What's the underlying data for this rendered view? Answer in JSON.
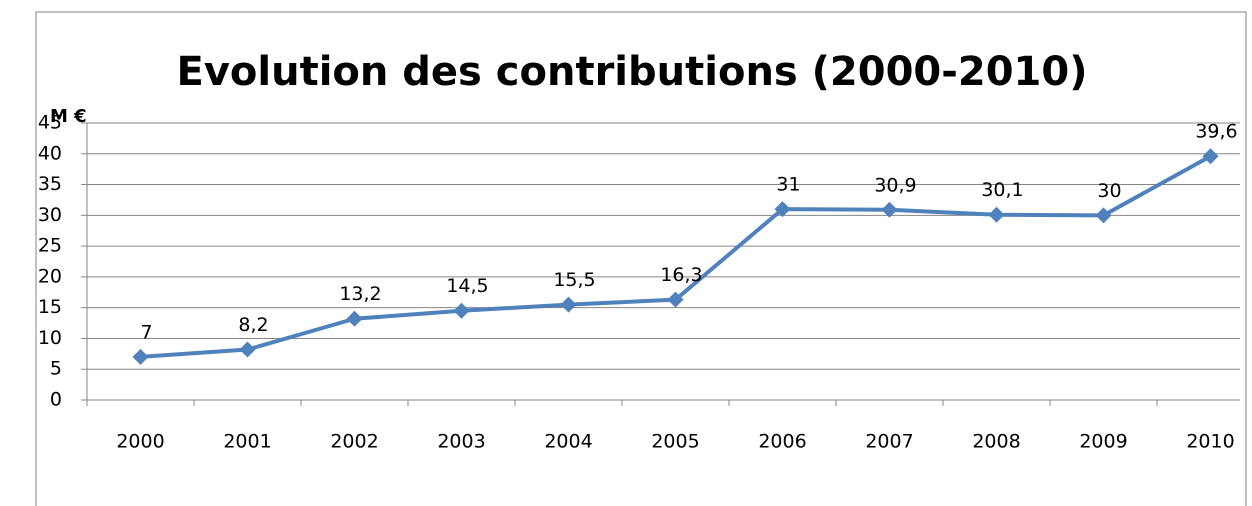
{
  "chart_data": {
    "type": "line",
    "title": "Evolution des contributions (2000-2010)",
    "ylabel": "M €",
    "categories": [
      "2000",
      "2001",
      "2002",
      "2003",
      "2004",
      "2005",
      "2006",
      "2007",
      "2008",
      "2009",
      "2010"
    ],
    "series": [
      {
        "name": "Contributions",
        "color": "#4f81bd",
        "values": [
          7,
          8.2,
          13.2,
          14.5,
          15.5,
          16.3,
          31,
          30.9,
          30.1,
          30,
          39.6
        ],
        "value_labels": [
          "7",
          "8,2",
          "13,2",
          "14,5",
          "15,5",
          "16,3",
          "31",
          "30,9",
          "30,1",
          "30",
          "39,6"
        ]
      }
    ],
    "ylim": [
      0,
      45
    ],
    "yticks": [
      0,
      5,
      10,
      15,
      20,
      25,
      30,
      35,
      40,
      45
    ],
    "grid": true,
    "legend": false
  }
}
